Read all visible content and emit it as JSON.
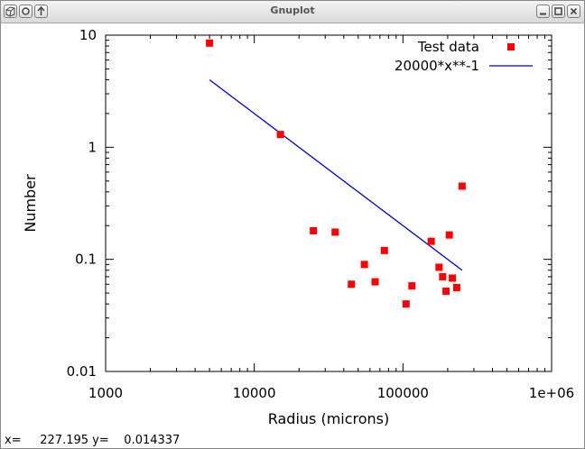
{
  "window": {
    "title": "Gnuplot"
  },
  "statusbar": {
    "x_label": "x=",
    "x_value": "227.195",
    "y_label": "y=",
    "y_value": "0.014337"
  },
  "chart_data": {
    "type": "scatter",
    "xlabel": "Radius (microns)",
    "ylabel": "Number",
    "xscale": "log",
    "yscale": "log",
    "xlim": [
      1000,
      1000000
    ],
    "ylim": [
      0.01,
      10
    ],
    "xticks": [
      "1000",
      "10000",
      "100000",
      "1e+06"
    ],
    "yticks": [
      "0.01",
      "0.1",
      "1",
      "10"
    ],
    "legend_position": "top-right",
    "series": [
      {
        "name": "Test data",
        "kind": "points",
        "color": "#ff0000",
        "points": [
          [
            5000,
            8.5
          ],
          [
            15000,
            1.3
          ],
          [
            25000,
            0.18
          ],
          [
            35000,
            0.175
          ],
          [
            45000,
            0.06
          ],
          [
            55000,
            0.09
          ],
          [
            65000,
            0.063
          ],
          [
            75000,
            0.12
          ],
          [
            105000,
            0.04
          ],
          [
            115000,
            0.058
          ],
          [
            155000,
            0.145
          ],
          [
            175000,
            0.085
          ],
          [
            185000,
            0.07
          ],
          [
            195000,
            0.052
          ],
          [
            205000,
            0.165
          ],
          [
            215000,
            0.068
          ],
          [
            230000,
            0.056
          ],
          [
            250000,
            0.45
          ]
        ]
      },
      {
        "name": "20000*x**-1",
        "kind": "line",
        "color": "#0000cc",
        "x": [
          5000,
          250000
        ]
      }
    ]
  }
}
